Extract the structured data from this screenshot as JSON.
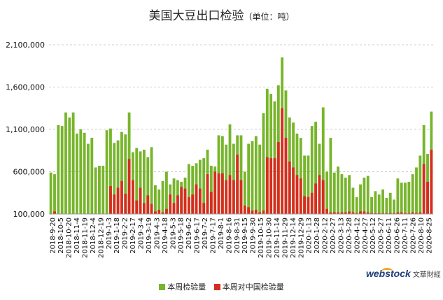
{
  "header": {
    "title": "美国大豆出口检验",
    "unit": "（单位：吨）"
  },
  "legend": {
    "total_label": "本周检验量",
    "china_label": "本周对中国检验量"
  },
  "logo": {
    "web": "web",
    "stock": "stock",
    "chinese": "文華財經"
  },
  "colors": {
    "total": "#77b52b",
    "china": "#d62d1f",
    "grid": "#cfcfcf",
    "axis": "#999999"
  },
  "chart_data": {
    "type": "bar",
    "title": "美国大豆出口检验",
    "unit_label": "（单位：吨）",
    "ylim": [
      100000,
      2100000
    ],
    "yticks": [
      100000,
      600000,
      1100000,
      1600000,
      2100000
    ],
    "ytick_labels": [
      "100,000",
      "600,000",
      "1,100,000",
      "1,600,000",
      "2,100,000"
    ],
    "grid": true,
    "legend_position": "bottom",
    "overlay": true,
    "xtick_labels": [
      "2018-9-20",
      "2018-10-5",
      "2018-10-20",
      "2018-11-4",
      "2018-11-19",
      "2018-12-4",
      "2018-12-19",
      "2019-1-3",
      "2019-1-18",
      "2019-2-2",
      "2019-2-17",
      "2019-3-4",
      "2019-3-19",
      "2019-4-3",
      "2019-4-18",
      "2019-5-3",
      "2019-5-18",
      "2019-6-2",
      "2019-6-17",
      "2019-7-2",
      "2019-7-17",
      "2019-8-1",
      "2019-8-16",
      "2019-8-31",
      "2019-9-15",
      "2019-9-30",
      "2019-10-15",
      "2019-10-30",
      "2019-11-14",
      "2019-11-29",
      "2019-12-14",
      "2019-12-29",
      "2020-1-13",
      "2020-1-28",
      "2020-2-12",
      "2020-2-27",
      "2020-3-13",
      "2020-3-28",
      "2020-4-12",
      "2020-4-27",
      "2020-5-12",
      "2020-5-27",
      "2020-6-11",
      "2020-6-26",
      "2020-7-11",
      "2020-7-26",
      "2020-8-10",
      "2020-8-25"
    ],
    "series": [
      {
        "name": "本周检验量",
        "values": [
          590000,
          570000,
          1150000,
          1140000,
          1300000,
          1240000,
          1300000,
          1050000,
          1100000,
          1060000,
          930000,
          1000000,
          650000,
          670000,
          670000,
          1090000,
          1110000,
          940000,
          970000,
          1070000,
          1040000,
          1300000,
          830000,
          880000,
          840000,
          860000,
          770000,
          890000,
          440000,
          390000,
          490000,
          600000,
          450000,
          520000,
          500000,
          480000,
          530000,
          690000,
          670000,
          700000,
          740000,
          760000,
          860000,
          670000,
          660000,
          1030000,
          1020000,
          920000,
          1160000,
          930000,
          1030000,
          1030000,
          600000,
          930000,
          960000,
          1020000,
          920000,
          1290000,
          1580000,
          1520000,
          1430000,
          1620000,
          1950000,
          1560000,
          1240000,
          1180000,
          1050000,
          1000000,
          790000,
          790000,
          1140000,
          1190000,
          930000,
          1360000,
          600000,
          1000000,
          590000,
          660000,
          570000,
          530000,
          560000,
          410000,
          300000,
          450000,
          530000,
          550000,
          300000,
          370000,
          330000,
          390000,
          290000,
          350000,
          270000,
          520000,
          470000,
          470000,
          480000,
          570000,
          650000,
          790000,
          1150000,
          810000,
          1310000
        ]
      },
      {
        "name": "本周对中国检验量",
        "values": [
          100000,
          130000,
          100000,
          100000,
          100000,
          100000,
          100000,
          100000,
          100000,
          100000,
          100000,
          100000,
          100000,
          100000,
          100000,
          100000,
          430000,
          330000,
          410000,
          490000,
          340000,
          750000,
          500000,
          260000,
          410000,
          230000,
          320000,
          220000,
          130000,
          150000,
          120000,
          160000,
          330000,
          230000,
          320000,
          420000,
          400000,
          300000,
          330000,
          450000,
          400000,
          230000,
          570000,
          360000,
          600000,
          580000,
          580000,
          500000,
          560000,
          500000,
          800000,
          500000,
          200000,
          180000,
          140000,
          150000,
          120000,
          140000,
          770000,
          760000,
          760000,
          950000,
          1350000,
          1000000,
          720000,
          650000,
          560000,
          520000,
          310000,
          300000,
          350000,
          460000,
          560000,
          500000,
          160000,
          120000,
          120000,
          120000,
          120000,
          120000,
          130000,
          120000,
          110000,
          130000,
          130000,
          120000,
          110000,
          110000,
          110000,
          110000,
          110000,
          110000,
          110000,
          120000,
          120000,
          110000,
          110000,
          120000,
          110000,
          120000,
          690000,
          480000,
          860000
        ]
      }
    ]
  }
}
